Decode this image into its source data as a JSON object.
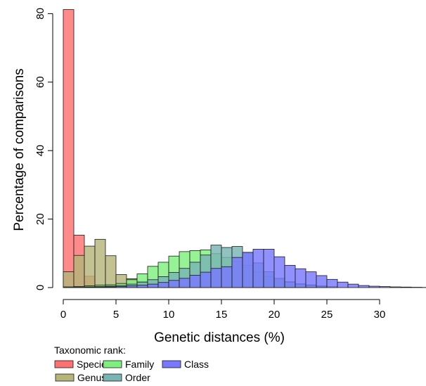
{
  "chart_data": {
    "type": "bar",
    "subtype": "overlapping-histogram",
    "title": "",
    "xlabel": "Genetic distances (%)",
    "ylabel": "Percentage of comparisons",
    "xlim": [
      0,
      35
    ],
    "ylim": [
      0,
      81
    ],
    "bin_width": 1,
    "xticks": [
      0,
      5,
      10,
      15,
      20,
      25,
      30
    ],
    "yticks": [
      0,
      20,
      40,
      60,
      80
    ],
    "legend_title": "Taxonomic rank:",
    "legend_position": "bottom-left",
    "series": [
      {
        "name": "Species",
        "color": "#ff7070",
        "bin_start": 0,
        "values": [
          81.2,
          15.3,
          3.3,
          0.4,
          0.2
        ]
      },
      {
        "name": "Genus",
        "color": "#b5b57a",
        "bin_start": 0,
        "values": [
          4.6,
          9.4,
          12.1,
          14.1,
          9.3,
          3.8,
          2.6,
          1.8,
          1.4,
          1.0,
          0.8,
          0.6,
          0.5,
          0.4,
          0.3
        ]
      },
      {
        "name": "Family",
        "color": "#7ef07e",
        "bin_start": 0,
        "values": [
          0.2,
          0.3,
          0.5,
          0.7,
          0.8,
          1.2,
          2.3,
          4.0,
          6.2,
          7.4,
          9.2,
          10.5,
          10.8,
          11.0,
          9.9,
          8.8,
          7.6,
          6.5,
          4.5,
          3.2,
          2.3,
          1.7,
          1.1,
          0.8,
          0.5,
          0.3
        ]
      },
      {
        "name": "Order",
        "color": "#79b4b4",
        "bin_start": 0,
        "values": [
          0.0,
          0.1,
          0.2,
          0.3,
          0.4,
          0.6,
          1.0,
          1.6,
          2.3,
          3.2,
          4.4,
          5.6,
          7.4,
          9.5,
          12.4,
          11.7,
          12.0,
          10.1,
          7.2,
          4.6,
          2.7,
          1.6,
          1.0,
          0.6,
          0.3
        ]
      },
      {
        "name": "Class",
        "color": "#7878ff",
        "bin_start": 0,
        "values": [
          0.0,
          0.0,
          0.1,
          0.1,
          0.2,
          0.3,
          0.5,
          0.7,
          1.0,
          1.5,
          2.1,
          2.7,
          3.6,
          4.5,
          5.6,
          6.1,
          8.8,
          10.3,
          11.2,
          11.2,
          9.0,
          6.5,
          5.5,
          4.6,
          3.5,
          2.4,
          1.6,
          1.0,
          0.6,
          0.4,
          0.3,
          0.2,
          0.15,
          0.1,
          0.05
        ]
      }
    ]
  }
}
